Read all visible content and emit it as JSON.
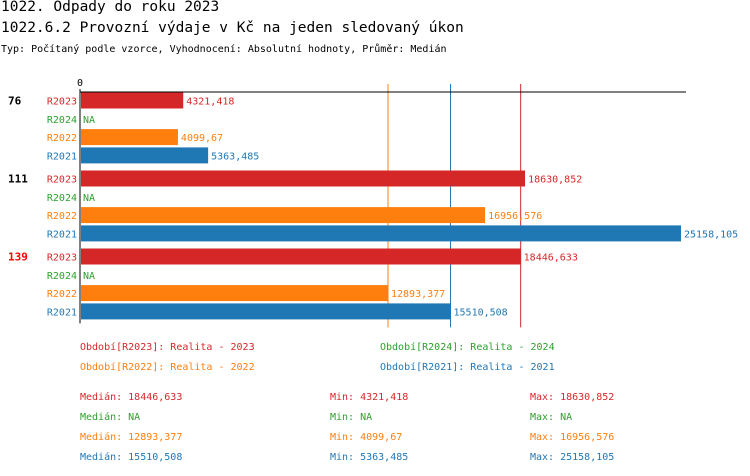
{
  "header": {
    "title": "1022. Odpady do roku 2023",
    "subtitle": "1022.6.2 Provozní výdaje v Kč na jeden sledovaný úkon",
    "meta": "Typ: Počítaný podle vzorce, Vyhodnocení: Absolutní hodnoty, Průměr: Medián"
  },
  "colors": {
    "R2023": "#d62728",
    "R2024": "#2ca02c",
    "R2022": "#ff7f0e",
    "R2021": "#1f77b4",
    "highlight": "#ff0000",
    "text": "#000000"
  },
  "chart_data": {
    "type": "bar",
    "orientation": "horizontal",
    "axis_zero_label": "0",
    "xlim": [
      0,
      25158.105
    ],
    "groups": [
      {
        "id": "76",
        "highlight": false,
        "bars": [
          {
            "period": "R2023",
            "value": 4321.418,
            "label": "4321,418"
          },
          {
            "period": "R2024",
            "value": null,
            "label": "NA"
          },
          {
            "period": "R2022",
            "value": 4099.67,
            "label": "4099,67"
          },
          {
            "period": "R2021",
            "value": 5363.485,
            "label": "5363,485"
          }
        ]
      },
      {
        "id": "111",
        "highlight": false,
        "bars": [
          {
            "period": "R2023",
            "value": 18630.852,
            "label": "18630,852"
          },
          {
            "period": "R2024",
            "value": null,
            "label": "NA"
          },
          {
            "period": "R2022",
            "value": 16956.576,
            "label": "16956,576"
          },
          {
            "period": "R2021",
            "value": 25158.105,
            "label": "25158,105"
          }
        ]
      },
      {
        "id": "139",
        "highlight": true,
        "bars": [
          {
            "period": "R2023",
            "value": 18446.633,
            "label": "18446,633"
          },
          {
            "period": "R2024",
            "value": null,
            "label": "NA"
          },
          {
            "period": "R2022",
            "value": 12893.377,
            "label": "12893,377"
          },
          {
            "period": "R2021",
            "value": 15510.508,
            "label": "15510,508"
          }
        ]
      }
    ],
    "median_lines": [
      {
        "period": "R2023",
        "value": 18446.633
      },
      {
        "period": "R2022",
        "value": 12893.377
      },
      {
        "period": "R2021",
        "value": 15510.508
      }
    ]
  },
  "legend": [
    {
      "period": "R2023",
      "text": "Období[R2023]: Realita - 2023"
    },
    {
      "period": "R2024",
      "text": "Období[R2024]: Realita - 2024"
    },
    {
      "period": "R2022",
      "text": "Období[R2022]: Realita - 2022"
    },
    {
      "period": "R2021",
      "text": "Období[R2021]: Realita - 2021"
    }
  ],
  "stats": [
    {
      "period": "R2023",
      "median": "Medián: 18446,633",
      "min": "Min: 4321,418",
      "max": "Max: 18630,852"
    },
    {
      "period": "R2024",
      "median": "Medián: NA",
      "min": "Min: NA",
      "max": "Max: NA"
    },
    {
      "period": "R2022",
      "median": "Medián: 12893,377",
      "min": "Min: 4099,67",
      "max": "Max: 16956,576"
    },
    {
      "period": "R2021",
      "median": "Medián: 15510,508",
      "min": "Min: 5363,485",
      "max": "Max: 25158,105"
    }
  ]
}
